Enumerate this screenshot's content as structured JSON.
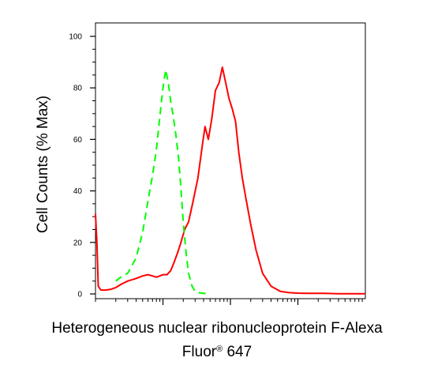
{
  "chart_data": {
    "type": "line",
    "xscale": "log",
    "xlim": [
      10,
      100000
    ],
    "ylim": [
      0,
      100
    ],
    "yticks": [
      0,
      20,
      40,
      60,
      80,
      100
    ],
    "ylabel": "Cell Counts (% Max)",
    "xlabel_line1": "Heterogeneous nuclear ribonucleoprotein F-Alexa",
    "xlabel_line2_main": "Fluor",
    "xlabel_line2_reg": "®",
    "xlabel_line2_end": " 647",
    "grid": false,
    "series": [
      {
        "color": "#ff0000",
        "style": "solid",
        "x": [
          10,
          10.5,
          11,
          12,
          14,
          17,
          20,
          25,
          30,
          40,
          50,
          60,
          70,
          80,
          90,
          100,
          115,
          130,
          145,
          165,
          185,
          210,
          240,
          280,
          330,
          380,
          420,
          470,
          530,
          600,
          680,
          760,
          850,
          950,
          1060,
          1190,
          1330,
          1500,
          1700,
          2000,
          2400,
          3000,
          4000,
          5500,
          7500,
          10000,
          15000,
          25000,
          40000,
          70000,
          100000
        ],
        "y": [
          31,
          20,
          3,
          1.5,
          1.5,
          1.8,
          2.5,
          4,
          5,
          6,
          7,
          7.5,
          7,
          6.5,
          7,
          7.5,
          7.5,
          9,
          12,
          16,
          20,
          25,
          28,
          36,
          45,
          57,
          65,
          60,
          68,
          79,
          82,
          88,
          82,
          76,
          72,
          67,
          55,
          45,
          37,
          27,
          17,
          8,
          3,
          1,
          0.5,
          0.3,
          0.2,
          0.2,
          0.1,
          0.1,
          0.1
        ]
      },
      {
        "color": "#00ff00",
        "style": "dashed",
        "x": [
          20,
          25,
          30,
          40,
          50,
          60,
          70,
          80,
          90,
          100,
          110,
          120,
          130,
          140,
          155,
          170,
          185,
          200,
          220,
          240,
          270,
          300,
          340,
          400,
          500
        ],
        "y": [
          5,
          7,
          8,
          14,
          24,
          36,
          46,
          56,
          69,
          80,
          87,
          82,
          75,
          70,
          62,
          53,
          41,
          28,
          16,
          8,
          3,
          1,
          0.5,
          0.2,
          0
        ]
      }
    ]
  }
}
